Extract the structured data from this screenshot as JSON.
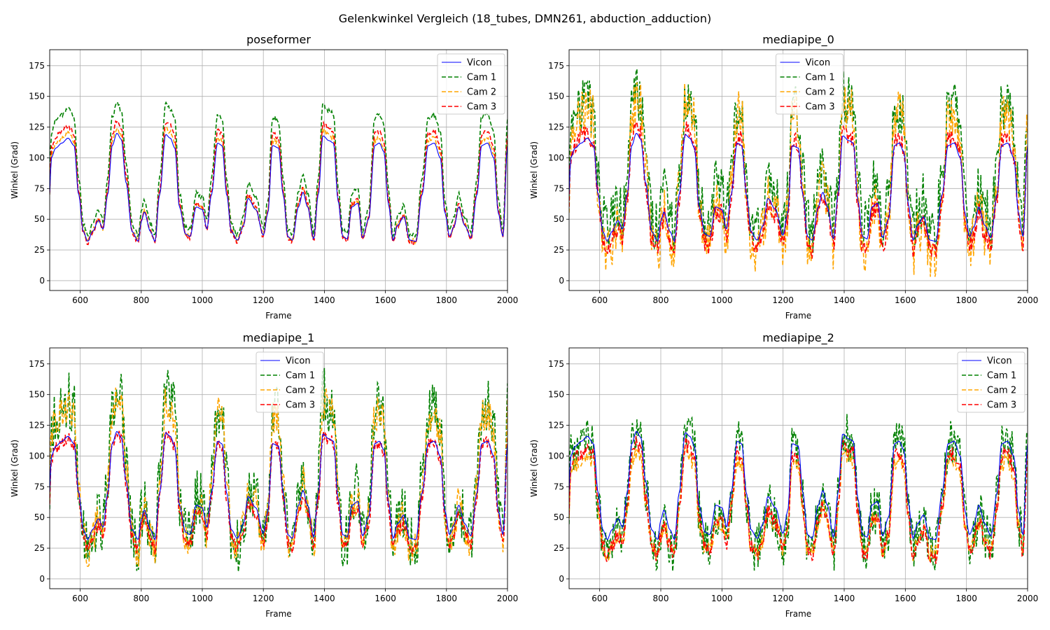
{
  "chart_data": {
    "type": "line",
    "title": "Gelenkwinkel Vergleich (18_tubes, DMN261, abduction_adduction)",
    "x_range": [
      500,
      2000
    ],
    "y_range": [
      -8,
      188
    ],
    "x_ticks": [
      600,
      800,
      1000,
      1200,
      1400,
      1600,
      1800,
      2000
    ],
    "y_ticks": [
      0,
      25,
      50,
      75,
      100,
      125,
      150,
      175
    ],
    "grid": true,
    "colors": {
      "Vicon": "#0000ff",
      "Cam 1": "#008000",
      "Cam 2": "#ffa500",
      "Cam 3": "#ff0000"
    },
    "vicon_keypoints": {
      "x": [
        500,
        505,
        520,
        540,
        560,
        580,
        595,
        610,
        625,
        640,
        660,
        675,
        690,
        705,
        720,
        735,
        750,
        770,
        790,
        800,
        810,
        830,
        845,
        860,
        880,
        895,
        910,
        925,
        945,
        960,
        980,
        1000,
        1015,
        1030,
        1050,
        1065,
        1080,
        1095,
        1115,
        1135,
        1150,
        1175,
        1200,
        1215,
        1230,
        1250,
        1265,
        1280,
        1295,
        1315,
        1330,
        1345,
        1365,
        1380,
        1395,
        1415,
        1430,
        1445,
        1460,
        1475,
        1490,
        1510,
        1525,
        1545,
        1565,
        1580,
        1595,
        1610,
        1625,
        1640,
        1660,
        1680,
        1700,
        1720,
        1740,
        1760,
        1780,
        1795,
        1810,
        1825,
        1840,
        1860,
        1880,
        1900,
        1915,
        1935,
        1955,
        1970,
        1985,
        2000
      ],
      "y": [
        70,
        100,
        108,
        112,
        116,
        110,
        70,
        40,
        32,
        40,
        49,
        42,
        70,
        110,
        120,
        115,
        80,
        40,
        32,
        48,
        56,
        40,
        32,
        70,
        119,
        116,
        108,
        60,
        38,
        36,
        60,
        58,
        42,
        70,
        112,
        110,
        70,
        40,
        33,
        45,
        67,
        58,
        37,
        55,
        110,
        108,
        70,
        36,
        33,
        60,
        72,
        60,
        34,
        70,
        118,
        114,
        112,
        65,
        36,
        34,
        60,
        63,
        35,
        50,
        110,
        112,
        105,
        62,
        33,
        45,
        52,
        33,
        32,
        70,
        110,
        112,
        100,
        55,
        36,
        44,
        60,
        45,
        35,
        70,
        110,
        112,
        100,
        55,
        36,
        110
      ]
    },
    "panels": [
      {
        "title": "poseformer",
        "xlabel": "Frame",
        "ylabel": "Winkel (Grad)",
        "legend_position": "top-right",
        "series": [
          {
            "name": "Vicon",
            "style": "solid",
            "values": "vicon"
          },
          {
            "name": "Cam 1",
            "style": "dashed",
            "peak_scale": 1.28,
            "low_offset": 4,
            "noise": 2
          },
          {
            "name": "Cam 2",
            "style": "dashed",
            "peak_scale": 1.05,
            "low_offset": 0,
            "noise": 2
          },
          {
            "name": "Cam 3",
            "style": "dashed",
            "peak_scale": 1.12,
            "low_offset": -2,
            "noise": 2
          }
        ]
      },
      {
        "title": "mediapipe_0",
        "xlabel": "Frame",
        "ylabel": "Winkel (Grad)",
        "legend_position": "top-center",
        "series": [
          {
            "name": "Vicon",
            "style": "solid",
            "values": "vicon"
          },
          {
            "name": "Cam 1",
            "style": "dashed",
            "peak_scale": 1.35,
            "low_offset": 8,
            "noise": 22
          },
          {
            "name": "Cam 2",
            "style": "dashed",
            "peak_scale": 1.3,
            "low_offset": -12,
            "noise": 20
          },
          {
            "name": "Cam 3",
            "style": "dashed",
            "peak_scale": 1.06,
            "low_offset": -8,
            "noise": 8
          }
        ]
      },
      {
        "title": "mediapipe_1",
        "xlabel": "Frame",
        "ylabel": "Winkel (Grad)",
        "legend_position": "top-center",
        "series": [
          {
            "name": "Vicon",
            "style": "solid",
            "values": "vicon"
          },
          {
            "name": "Cam 1",
            "style": "dashed",
            "peak_scale": 1.35,
            "low_offset": -6,
            "noise": 24
          },
          {
            "name": "Cam 2",
            "style": "dashed",
            "peak_scale": 1.3,
            "low_offset": -10,
            "noise": 14
          },
          {
            "name": "Cam 3",
            "style": "dashed",
            "peak_scale": 1.0,
            "low_offset": -8,
            "noise": 5
          }
        ]
      },
      {
        "title": "mediapipe_2",
        "xlabel": "Frame",
        "ylabel": "Winkel (Grad)",
        "legend_position": "top-right",
        "series": [
          {
            "name": "Vicon",
            "style": "solid",
            "values": "vicon"
          },
          {
            "name": "Cam 1",
            "style": "dashed",
            "peak_scale": 1.0,
            "low_offset": -10,
            "noise": 20
          },
          {
            "name": "Cam 2",
            "style": "dashed",
            "peak_scale": 0.82,
            "low_offset": -12,
            "noise": 7
          },
          {
            "name": "Cam 3",
            "style": "dashed",
            "peak_scale": 0.9,
            "low_offset": -14,
            "noise": 6
          }
        ]
      }
    ]
  }
}
